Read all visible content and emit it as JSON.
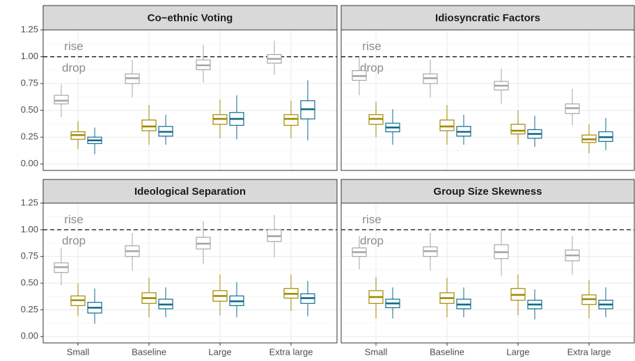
{
  "chart_data": {
    "type": "box",
    "categories": [
      "Small",
      "Baseline",
      "Large",
      "Extra large"
    ],
    "ylim": [
      -0.06,
      1.25
    ],
    "yticks": [
      {
        "value": 0,
        "label": "0.00"
      },
      0.25,
      {
        "value": 0.5,
        "label": "0.50"
      },
      0.75,
      {
        "value": 1,
        "label": "1.00"
      },
      1.25
    ],
    "hline": 1,
    "annotations": [
      {
        "text": "rise",
        "y": 1.09
      },
      {
        "text": "drop",
        "y": 0.89
      }
    ],
    "panels": [
      {
        "title": "Co−ethnic Voting",
        "series": [
          {
            "color": "#a3a6aa",
            "min": [
              0.44,
              0.62,
              0.76,
              0.83
            ],
            "q1": [
              0.56,
              0.75,
              0.88,
              0.94
            ],
            "median": [
              0.59,
              0.8,
              0.92,
              0.98
            ],
            "q3": [
              0.64,
              0.84,
              0.97,
              1.02
            ],
            "max": [
              0.74,
              0.97,
              1.11,
              1.15
            ]
          },
          {
            "color": "#a08900",
            "min": [
              0.14,
              0.18,
              0.24,
              0.24
            ],
            "q1": [
              0.23,
              0.31,
              0.37,
              0.36
            ],
            "median": [
              0.27,
              0.35,
              0.42,
              0.42
            ],
            "q3": [
              0.3,
              0.41,
              0.46,
              0.46
            ],
            "max": [
              0.4,
              0.55,
              0.6,
              0.59
            ]
          },
          {
            "color": "#0e6b8e",
            "min": [
              0.09,
              0.18,
              0.23,
              0.22
            ],
            "q1": [
              0.19,
              0.26,
              0.36,
              0.42
            ],
            "median": [
              0.22,
              0.3,
              0.42,
              0.51
            ],
            "q3": [
              0.25,
              0.35,
              0.48,
              0.59
            ],
            "max": [
              0.34,
              0.46,
              0.64,
              0.78
            ]
          }
        ]
      },
      {
        "title": "Idiosyncratic Factors",
        "series": [
          {
            "color": "#a3a6aa",
            "min": [
              0.64,
              0.62,
              0.56,
              0.36
            ],
            "q1": [
              0.78,
              0.75,
              0.69,
              0.47
            ],
            "median": [
              0.82,
              0.8,
              0.73,
              0.52
            ],
            "q3": [
              0.87,
              0.84,
              0.77,
              0.56
            ],
            "max": [
              0.99,
              0.97,
              0.89,
              0.7
            ]
          },
          {
            "color": "#a08900",
            "min": [
              0.25,
              0.18,
              0.18,
              0.1
            ],
            "q1": [
              0.37,
              0.31,
              0.28,
              0.2
            ],
            "median": [
              0.42,
              0.35,
              0.31,
              0.23
            ],
            "q3": [
              0.46,
              0.41,
              0.37,
              0.27
            ],
            "max": [
              0.58,
              0.55,
              0.5,
              0.37
            ]
          },
          {
            "color": "#0e6b8e",
            "min": [
              0.18,
              0.18,
              0.16,
              0.13
            ],
            "q1": [
              0.3,
              0.26,
              0.24,
              0.21
            ],
            "median": [
              0.34,
              0.3,
              0.28,
              0.25
            ],
            "q3": [
              0.38,
              0.35,
              0.32,
              0.3
            ],
            "max": [
              0.51,
              0.46,
              0.45,
              0.43
            ]
          }
        ]
      },
      {
        "title": "Ideological Separation",
        "series": [
          {
            "color": "#a3a6aa",
            "min": [
              0.48,
              0.62,
              0.68,
              0.74
            ],
            "q1": [
              0.6,
              0.75,
              0.82,
              0.89
            ],
            "median": [
              0.65,
              0.8,
              0.87,
              0.94
            ],
            "q3": [
              0.69,
              0.85,
              0.93,
              1.0
            ],
            "max": [
              0.83,
              0.97,
              1.08,
              1.14
            ]
          },
          {
            "color": "#a08900",
            "min": [
              0.19,
              0.18,
              0.2,
              0.24
            ],
            "q1": [
              0.29,
              0.31,
              0.33,
              0.36
            ],
            "median": [
              0.34,
              0.36,
              0.38,
              0.4
            ],
            "q3": [
              0.38,
              0.41,
              0.43,
              0.45
            ],
            "max": [
              0.5,
              0.55,
              0.58,
              0.58
            ]
          },
          {
            "color": "#0e6b8e",
            "min": [
              0.12,
              0.18,
              0.18,
              0.19
            ],
            "q1": [
              0.22,
              0.26,
              0.29,
              0.31
            ],
            "median": [
              0.27,
              0.3,
              0.33,
              0.36
            ],
            "q3": [
              0.32,
              0.35,
              0.38,
              0.4
            ],
            "max": [
              0.45,
              0.46,
              0.51,
              0.52
            ]
          }
        ]
      },
      {
        "title": "Group Size Skewness",
        "series": [
          {
            "color": "#a3a6aa",
            "min": [
              0.63,
              0.62,
              0.57,
              0.58
            ],
            "q1": [
              0.75,
              0.75,
              0.73,
              0.71
            ],
            "median": [
              0.79,
              0.8,
              0.79,
              0.76
            ],
            "q3": [
              0.83,
              0.84,
              0.86,
              0.81
            ],
            "max": [
              0.94,
              0.97,
              1.01,
              0.94
            ]
          },
          {
            "color": "#a08900",
            "min": [
              0.17,
              0.18,
              0.2,
              0.17
            ],
            "q1": [
              0.31,
              0.31,
              0.34,
              0.3
            ],
            "median": [
              0.37,
              0.36,
              0.39,
              0.35
            ],
            "q3": [
              0.43,
              0.41,
              0.45,
              0.39
            ],
            "max": [
              0.56,
              0.55,
              0.58,
              0.53
            ]
          },
          {
            "color": "#0e6b8e",
            "min": [
              0.17,
              0.18,
              0.16,
              0.18
            ],
            "q1": [
              0.27,
              0.26,
              0.26,
              0.26
            ],
            "median": [
              0.31,
              0.3,
              0.3,
              0.3
            ],
            "q3": [
              0.35,
              0.35,
              0.34,
              0.34
            ],
            "max": [
              0.46,
              0.46,
              0.44,
              0.46
            ]
          }
        ]
      }
    ]
  }
}
